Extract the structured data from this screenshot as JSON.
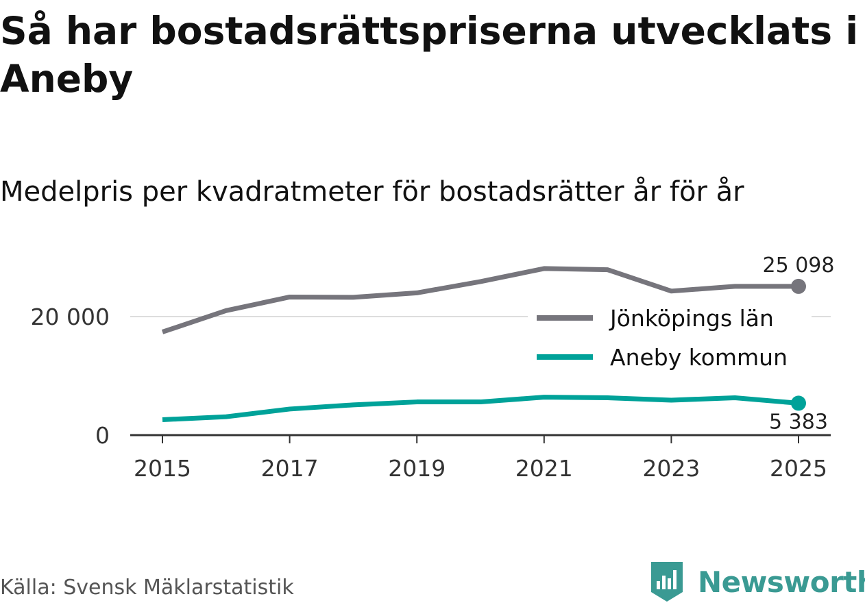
{
  "title": "Så har bostadsrättspriserna utvecklats i Aneby",
  "subtitle": "Medelpris per kvadratmeter för bostadsrätter år för år",
  "source": "Källa: Svensk Mäklarstatistik",
  "brand": {
    "name": "Newsworthy",
    "color": "#3a9a93"
  },
  "colors": {
    "jonkoping": "#76757c",
    "aneby": "#00a299",
    "grid": "#dddddd",
    "axis": "#333333"
  },
  "icons": {
    "logo": "newsworthy-bar-chart-icon"
  },
  "chart_data": {
    "type": "line",
    "title": "Så har bostadsrättspriserna utvecklats i Aneby",
    "subtitle": "Medelpris per kvadratmeter för bostadsrätter år för år",
    "xlabel": "",
    "ylabel": "",
    "x": [
      2015,
      2016,
      2017,
      2018,
      2019,
      2020,
      2021,
      2022,
      2023,
      2024,
      2025
    ],
    "x_ticks": [
      "2015",
      "2017",
      "2019",
      "2021",
      "2023",
      "2025"
    ],
    "y_ticks": [
      {
        "value": 0,
        "label": "0"
      },
      {
        "value": 20000,
        "label": "20 000"
      }
    ],
    "ylim": [
      0,
      30000
    ],
    "grid": true,
    "legend_position": "right",
    "series": [
      {
        "name": "Jönköpings län",
        "color": "#76757c",
        "values": [
          17400,
          21000,
          23300,
          23250,
          24000,
          25900,
          28100,
          27900,
          24300,
          25100,
          25098
        ],
        "end_label": "25 098"
      },
      {
        "name": "Aneby kommun",
        "color": "#00a299",
        "values": [
          2600,
          3100,
          4400,
          5100,
          5600,
          5600,
          6400,
          6300,
          5900,
          6300,
          5383
        ],
        "end_label": "5 383"
      }
    ]
  }
}
